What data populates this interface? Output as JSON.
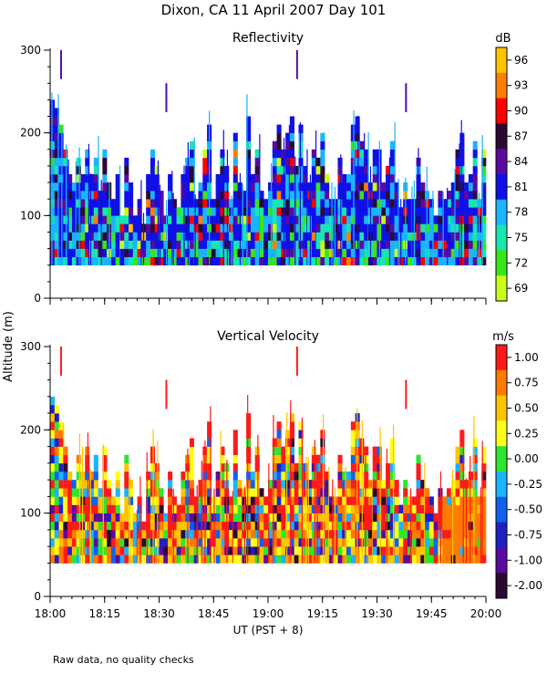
{
  "figure": {
    "title": "Dixon, CA 11 April 2007  Day 101",
    "ylabel": "Altitude (m)",
    "xlabel": "UT  (PST + 8)",
    "footnote": "Raw data, no quality checks"
  },
  "chart_data": [
    {
      "type": "heatmap",
      "title": "Reflectivity",
      "unit": "dB",
      "xlabel": "UT  (PST + 8)",
      "ylabel": "Altitude (m)",
      "xlim": [
        "18:00",
        "20:00"
      ],
      "x_ticks": [
        "18:00",
        "18:15",
        "18:30",
        "18:45",
        "19:00",
        "19:15",
        "19:30",
        "19:45",
        "20:00"
      ],
      "ylim": [
        0,
        300
      ],
      "y_ticks": [
        0,
        100,
        200,
        300
      ],
      "data_floor_m": 40,
      "colorbar": {
        "labels": [
          "96",
          "93",
          "90",
          "87",
          "84",
          "81",
          "78",
          "75",
          "72",
          "69"
        ],
        "colors": [
          "#ffc400",
          "#ff8000",
          "#ff0000",
          "#2a0a33",
          "#5a0aa0",
          "#1010e6",
          "#1ab4ff",
          "#18e6b0",
          "#38e61a",
          "#c8ff1a"
        ]
      },
      "echo_tops_m": [
        240,
        225,
        205,
        175,
        150,
        140,
        170,
        150,
        175,
        145,
        170,
        130,
        175,
        140,
        120,
        150,
        100,
        170,
        140,
        100,
        120,
        90,
        150,
        175,
        160,
        130,
        100,
        145,
        120,
        110,
        150,
        170,
        190,
        120,
        135,
        175,
        205,
        120,
        150,
        175,
        160,
        120,
        195,
        140,
        130,
        220,
        150,
        175,
        130,
        120,
        140,
        190,
        205,
        175,
        200,
        220,
        160,
        210,
        155,
        140,
        175,
        165,
        200,
        150,
        120,
        120,
        170,
        150,
        145,
        210,
        220,
        185,
        175,
        135,
        175,
        175,
        135,
        160,
        190,
        135,
        110,
        140,
        120,
        120,
        170,
        135,
        130,
        120,
        100,
        125,
        120,
        125,
        140,
        180,
        195,
        135,
        150,
        190,
        120,
        180
      ],
      "high_echo_cols": [
        {
          "time": "18:03",
          "top_m": 300
        },
        {
          "time": "18:32",
          "top_m": 260
        },
        {
          "time": "19:08",
          "top_m": 300
        },
        {
          "time": "19:38",
          "top_m": 260
        }
      ]
    },
    {
      "type": "heatmap",
      "title": "Vertical Velocity",
      "unit": "m/s",
      "xlabel": "UT  (PST + 8)",
      "ylabel": "Altitude (m)",
      "xlim": [
        "18:00",
        "20:00"
      ],
      "x_ticks": [
        "18:00",
        "18:15",
        "18:30",
        "18:45",
        "19:00",
        "19:15",
        "19:30",
        "19:45",
        "20:00"
      ],
      "ylim": [
        0,
        300
      ],
      "y_ticks": [
        0,
        100,
        200,
        300
      ],
      "data_floor_m": 40,
      "colorbar": {
        "labels": [
          "1.00",
          "0.75",
          "0.50",
          "0.25",
          "0.00",
          "-0.25",
          "-0.50",
          "-0.75",
          "-1.00",
          "-2.00"
        ],
        "colors": [
          "#ff1a1a",
          "#ff7a00",
          "#ffc400",
          "#ffff1a",
          "#2ee62e",
          "#1ab4ff",
          "#1060f0",
          "#2020c0",
          "#5a0aa0",
          "#2a0a33"
        ]
      },
      "echo_tops_m": [
        240,
        225,
        205,
        175,
        150,
        140,
        170,
        150,
        175,
        145,
        170,
        130,
        175,
        140,
        120,
        150,
        100,
        170,
        140,
        100,
        120,
        90,
        150,
        175,
        160,
        130,
        100,
        145,
        120,
        110,
        150,
        170,
        190,
        120,
        135,
        175,
        205,
        120,
        150,
        175,
        160,
        120,
        195,
        140,
        130,
        220,
        150,
        175,
        130,
        120,
        140,
        190,
        205,
        175,
        200,
        220,
        160,
        210,
        155,
        140,
        175,
        165,
        200,
        150,
        120,
        120,
        170,
        150,
        145,
        210,
        220,
        185,
        175,
        135,
        175,
        175,
        135,
        160,
        190,
        135,
        110,
        140,
        120,
        120,
        170,
        135,
        130,
        120,
        100,
        125,
        120,
        125,
        140,
        180,
        195,
        135,
        150,
        190,
        120,
        180
      ],
      "high_echo_cols": [
        {
          "time": "18:03",
          "top_m": 300
        },
        {
          "time": "18:32",
          "top_m": 260
        },
        {
          "time": "19:08",
          "top_m": 300
        },
        {
          "time": "19:38",
          "top_m": 260
        }
      ]
    }
  ]
}
